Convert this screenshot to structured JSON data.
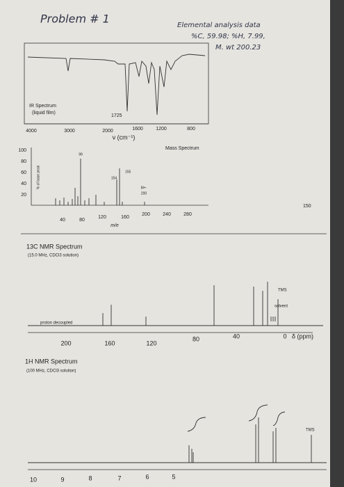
{
  "header": {
    "problem": "Problem # 1",
    "notes": [
      "Elemental analysis data",
      "%C, 59.98; %H, 7.99,",
      "M. wt 200.23"
    ]
  },
  "ir": {
    "title": "IR Spectrum",
    "subtitle": "(liquid film)",
    "peak_label": "1725",
    "x_labels": [
      "4000",
      "3000",
      "2000",
      "1600",
      "1200",
      "800"
    ],
    "x_title": "ν (cm⁻¹)"
  },
  "mass": {
    "title": "Mass Spectrum",
    "y_labels": [
      "100",
      "80",
      "60",
      "40",
      "20"
    ],
    "y_title": "% of base peak",
    "peak_labels": [
      "99",
      "155",
      "154",
      "M+·",
      "200"
    ],
    "x_labels": [
      "40",
      "80",
      "120",
      "160",
      "200",
      "240",
      "280"
    ],
    "x_title": "m/e",
    "margin_note": "150"
  },
  "c13": {
    "title": "13C NMR Spectrum",
    "subtitle": "(15.0 MHz, CDCl3 solution)",
    "decoupled": "proton decoupled",
    "solvent": "solvent",
    "tms": "TMS",
    "x_labels": [
      "200",
      "160",
      "120",
      "80",
      "40",
      "0"
    ],
    "x_title": "δ (ppm)"
  },
  "h1": {
    "title": "1H NMR Spectrum",
    "subtitle": "(100 MHz, CDCl3 solution)",
    "tms": "TMS",
    "x_labels": [
      "10",
      "9",
      "8",
      "7",
      "6",
      "5"
    ]
  }
}
